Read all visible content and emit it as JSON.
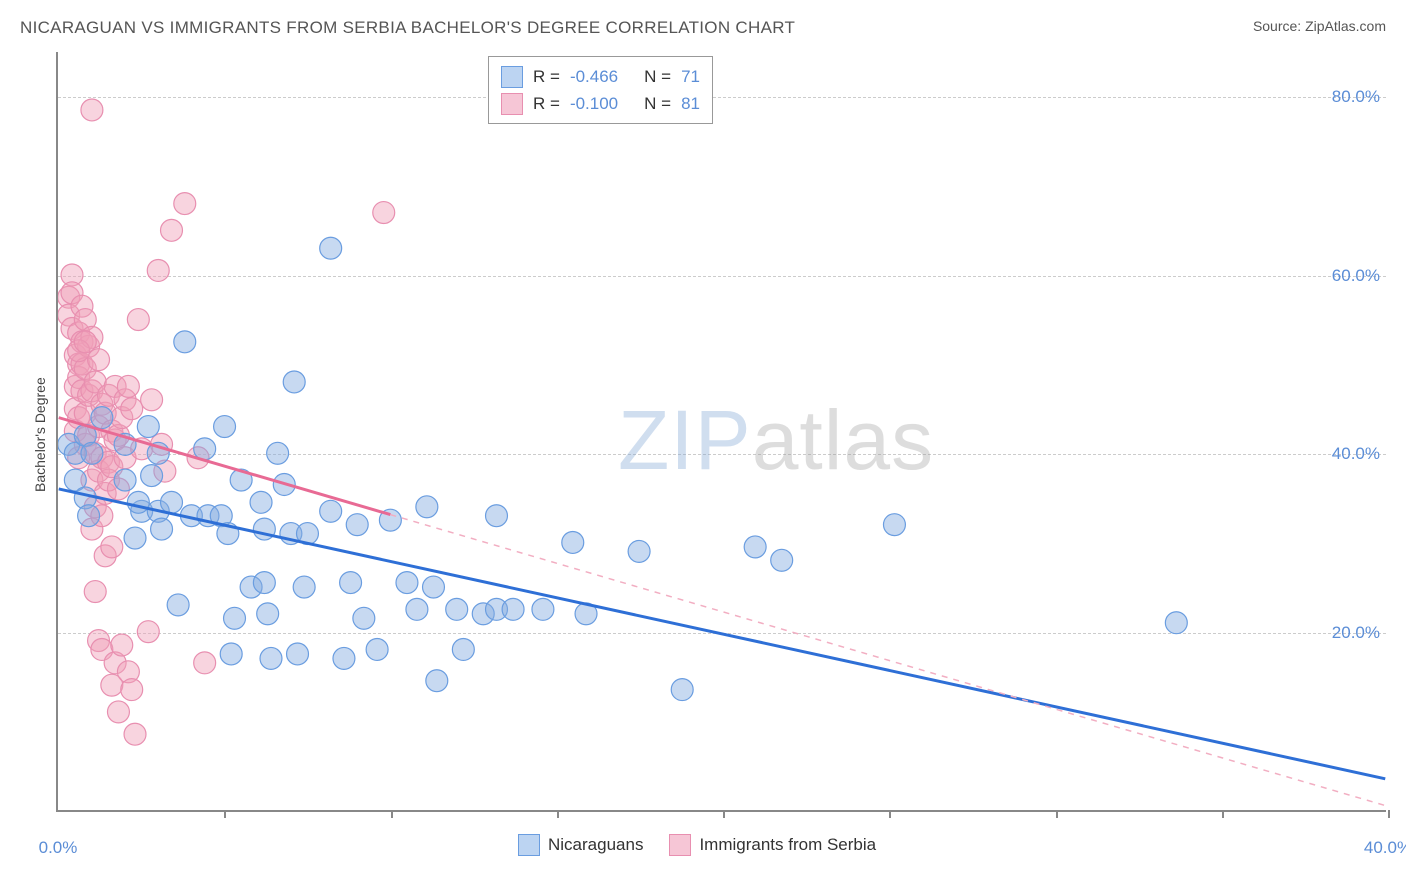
{
  "header": {
    "title": "NICARAGUAN VS IMMIGRANTS FROM SERBIA BACHELOR'S DEGREE CORRELATION CHART",
    "source_label": "Source: ",
    "source_link": "ZipAtlas.com"
  },
  "chart": {
    "type": "scatter",
    "y_axis_label": "Bachelor's Degree",
    "x_range_pct": [
      0,
      40
    ],
    "y_range_pct": [
      0,
      85
    ],
    "y_gridlines_pct": [
      20,
      40,
      60,
      80
    ],
    "y_tick_labels": [
      "20.0%",
      "40.0%",
      "60.0%",
      "80.0%"
    ],
    "x_tick_positions_pct": [
      0,
      5,
      10,
      15,
      20,
      25,
      30,
      35,
      40
    ],
    "x_tick_labels_shown": {
      "0": "0.0%",
      "40": "40.0%"
    },
    "background_color": "#ffffff",
    "grid_color": "#cccccc",
    "axis_color": "#888888",
    "series": [
      {
        "name": "Nicaraguans",
        "color_fill": "rgba(130,170,225,0.45)",
        "color_stroke": "#6a9de0",
        "swatch_fill": "#bcd4f2",
        "swatch_stroke": "#6a9de0",
        "marker_radius": 11,
        "R": "-0.466",
        "N": "71",
        "trend": {
          "x1_pct": 0,
          "y1_pct": 36,
          "x2_pct": 40,
          "y2_pct": 3.5,
          "solid_until_x_pct": 40,
          "line_color": "#2e6fd6",
          "line_width": 3
        },
        "points": [
          [
            0.3,
            41
          ],
          [
            0.5,
            40
          ],
          [
            0.5,
            37
          ],
          [
            0.8,
            35
          ],
          [
            0.8,
            42
          ],
          [
            0.9,
            33
          ],
          [
            1.0,
            40
          ],
          [
            1.3,
            44
          ],
          [
            2.0,
            41
          ],
          [
            2.0,
            37
          ],
          [
            2.3,
            30.5
          ],
          [
            2.5,
            33.5
          ],
          [
            2.4,
            34.5
          ],
          [
            2.7,
            43
          ],
          [
            2.8,
            37.5
          ],
          [
            3.0,
            40
          ],
          [
            3.0,
            33.5
          ],
          [
            3.1,
            31.5
          ],
          [
            3.4,
            34.5
          ],
          [
            3.6,
            23
          ],
          [
            3.8,
            52.5
          ],
          [
            4.0,
            33
          ],
          [
            4.4,
            40.5
          ],
          [
            4.5,
            33
          ],
          [
            4.9,
            33
          ],
          [
            5.0,
            43
          ],
          [
            5.1,
            31
          ],
          [
            5.2,
            17.5
          ],
          [
            5.3,
            21.5
          ],
          [
            5.5,
            37
          ],
          [
            5.8,
            25
          ],
          [
            6.1,
            34.5
          ],
          [
            6.2,
            31.5
          ],
          [
            6.2,
            25.5
          ],
          [
            6.3,
            22
          ],
          [
            6.4,
            17
          ],
          [
            6.6,
            40
          ],
          [
            6.8,
            36.5
          ],
          [
            7.0,
            31
          ],
          [
            7.1,
            48
          ],
          [
            7.2,
            17.5
          ],
          [
            7.4,
            25
          ],
          [
            7.5,
            31
          ],
          [
            8.2,
            63
          ],
          [
            8.2,
            33.5
          ],
          [
            8.6,
            17
          ],
          [
            8.8,
            25.5
          ],
          [
            9.0,
            32
          ],
          [
            9.6,
            18
          ],
          [
            10.0,
            32.5
          ],
          [
            10.5,
            25.5
          ],
          [
            10.8,
            22.5
          ],
          [
            11.1,
            34
          ],
          [
            11.3,
            25
          ],
          [
            11.4,
            14.5
          ],
          [
            12.0,
            22.5
          ],
          [
            12.2,
            18
          ],
          [
            12.8,
            22
          ],
          [
            13.2,
            33
          ],
          [
            13.2,
            22.5
          ],
          [
            13.7,
            22.5
          ],
          [
            14.6,
            22.5
          ],
          [
            15.5,
            30
          ],
          [
            15.9,
            22
          ],
          [
            17.5,
            29
          ],
          [
            18.8,
            13.5
          ],
          [
            21.0,
            29.5
          ],
          [
            21.8,
            28
          ],
          [
            25.2,
            32
          ],
          [
            33.7,
            21
          ],
          [
            9.2,
            21.5
          ]
        ]
      },
      {
        "name": "Immigrants from Serbia",
        "color_fill": "rgba(240,160,185,0.45)",
        "color_stroke": "#e88fb0",
        "swatch_fill": "#f6c6d6",
        "swatch_stroke": "#e88fb0",
        "marker_radius": 11,
        "R": "-0.100",
        "N": "81",
        "trend": {
          "x1_pct": 0,
          "y1_pct": 44,
          "x2_pct": 40,
          "y2_pct": 0.5,
          "solid_until_x_pct": 10,
          "line_color": "#e86a94",
          "line_width": 3,
          "dash_color": "#f2aec2"
        },
        "points": [
          [
            0.3,
            57.5
          ],
          [
            0.3,
            55.5
          ],
          [
            0.4,
            60
          ],
          [
            0.4,
            58
          ],
          [
            0.4,
            54
          ],
          [
            0.5,
            51
          ],
          [
            0.5,
            47.5
          ],
          [
            0.5,
            45
          ],
          [
            0.5,
            42.5
          ],
          [
            0.6,
            53.5
          ],
          [
            0.6,
            50
          ],
          [
            0.6,
            48.5
          ],
          [
            0.6,
            44
          ],
          [
            0.6,
            39.5
          ],
          [
            0.7,
            56.5
          ],
          [
            0.7,
            52.5
          ],
          [
            0.7,
            50
          ],
          [
            0.7,
            47
          ],
          [
            0.8,
            55
          ],
          [
            0.8,
            49.5
          ],
          [
            0.8,
            44.5
          ],
          [
            0.8,
            41
          ],
          [
            0.9,
            52
          ],
          [
            0.9,
            46.5
          ],
          [
            0.9,
            42
          ],
          [
            1.0,
            53
          ],
          [
            1.0,
            47
          ],
          [
            1.0,
            37
          ],
          [
            1.0,
            31.5
          ],
          [
            1.1,
            48
          ],
          [
            1.1,
            40
          ],
          [
            1.1,
            34
          ],
          [
            1.1,
            24.5
          ],
          [
            1.2,
            50.5
          ],
          [
            1.2,
            43
          ],
          [
            1.2,
            38
          ],
          [
            1.2,
            19
          ],
          [
            1.3,
            45.5
          ],
          [
            1.3,
            39.5
          ],
          [
            1.3,
            33
          ],
          [
            1.3,
            18
          ],
          [
            1.4,
            44.5
          ],
          [
            1.4,
            35.5
          ],
          [
            1.4,
            28.5
          ],
          [
            1.5,
            46.5
          ],
          [
            1.5,
            39
          ],
          [
            1.5,
            37
          ],
          [
            1.6,
            42.5
          ],
          [
            1.6,
            38.5
          ],
          [
            1.6,
            29.5
          ],
          [
            1.6,
            14
          ],
          [
            1.7,
            47.5
          ],
          [
            1.7,
            41.5
          ],
          [
            1.7,
            16.5
          ],
          [
            1.8,
            42
          ],
          [
            1.8,
            36
          ],
          [
            1.8,
            11
          ],
          [
            1.9,
            44
          ],
          [
            1.9,
            18.5
          ],
          [
            2.0,
            46
          ],
          [
            2.0,
            39.5
          ],
          [
            2.1,
            47.5
          ],
          [
            2.1,
            15.5
          ],
          [
            2.2,
            45
          ],
          [
            2.2,
            13.5
          ],
          [
            2.3,
            8.5
          ],
          [
            2.4,
            55
          ],
          [
            2.5,
            40.5
          ],
          [
            2.7,
            20
          ],
          [
            2.8,
            46
          ],
          [
            3.0,
            60.5
          ],
          [
            3.1,
            41
          ],
          [
            3.2,
            38
          ],
          [
            3.4,
            65
          ],
          [
            3.8,
            68
          ],
          [
            4.2,
            39.5
          ],
          [
            4.4,
            16.5
          ],
          [
            1.0,
            78.5
          ],
          [
            0.6,
            51.5
          ],
          [
            0.8,
            52.5
          ],
          [
            9.8,
            67
          ]
        ]
      }
    ],
    "legend_bottom": [
      {
        "label": "Nicaraguans",
        "swatch_fill": "#bcd4f2",
        "swatch_stroke": "#6a9de0"
      },
      {
        "label": "Immigrants from Serbia",
        "swatch_fill": "#f6c6d6",
        "swatch_stroke": "#e88fb0"
      }
    ],
    "watermark": {
      "a": "ZIP",
      "b": "atlas"
    }
  }
}
